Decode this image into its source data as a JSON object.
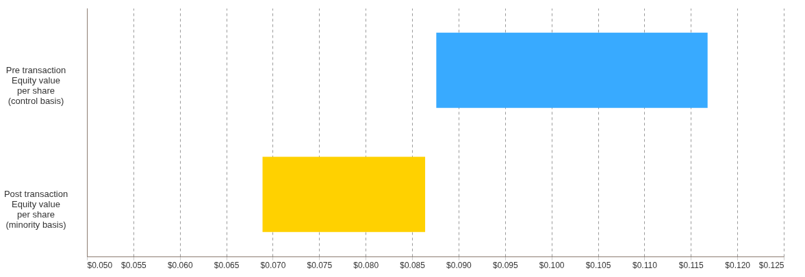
{
  "chart_data": {
    "type": "bar",
    "orientation": "horizontal",
    "categories": [
      "Pre transaction\nEquity value\nper share\n(control basis)",
      "Post transaction\nEquity value\nper share\n(minority basis)"
    ],
    "base": [
      0.0876,
      0.0689
    ],
    "values": [
      0.0292,
      0.0175
    ],
    "colors": [
      "#38aaff",
      "#ffd100"
    ],
    "xlim": [
      0.05,
      0.125
    ],
    "xticks": [
      {
        "value": 0.05,
        "label": "$0.050"
      },
      {
        "value": 0.055,
        "label": "$0.055"
      },
      {
        "value": 0.06,
        "label": "$0.060"
      },
      {
        "value": 0.065,
        "label": "$0.065"
      },
      {
        "value": 0.07,
        "label": "$0.070"
      },
      {
        "value": 0.075,
        "label": "$0.075"
      },
      {
        "value": 0.08,
        "label": "$0.080"
      },
      {
        "value": 0.085,
        "label": "$0.085"
      },
      {
        "value": 0.09,
        "label": "$0.090"
      },
      {
        "value": 0.095,
        "label": "$0.095"
      },
      {
        "value": 0.1,
        "label": "$0.100"
      },
      {
        "value": 0.105,
        "label": "$0.105"
      },
      {
        "value": 0.11,
        "label": "$0.110"
      },
      {
        "value": 0.115,
        "label": "$0.115"
      },
      {
        "value": 0.12,
        "label": "$0.120"
      },
      {
        "value": 0.125,
        "label": "$0.125"
      }
    ],
    "grid": "x"
  }
}
